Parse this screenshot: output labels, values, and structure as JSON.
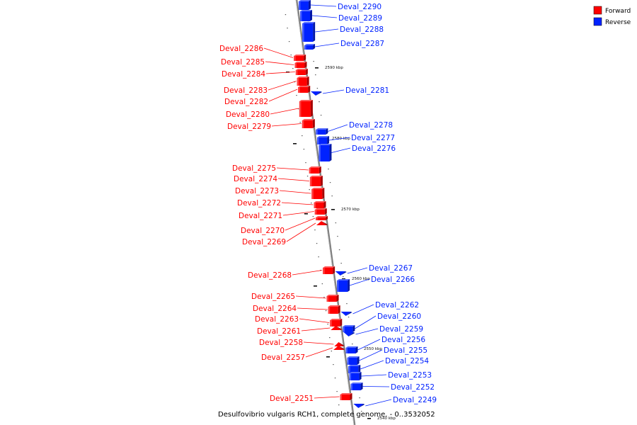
{
  "caption": "Desulfovibrio vulgaris RCH1, complete genome. - 0..3532052",
  "legend": [
    {
      "label": "Forward",
      "color": "#ff0000"
    },
    {
      "label": "Reverse",
      "color": "#0022ff"
    }
  ],
  "colors": {
    "forward": "#ff0000",
    "reverse": "#0022ff",
    "axis": "#777777"
  },
  "ticks": [
    "2590 kbp",
    "2580 kbp",
    "2570 kbp",
    "2560 kbp",
    "2550 kbp",
    "2540 kbp"
  ],
  "genes": [
    {
      "name": "Deval_2290",
      "strand": "reverse"
    },
    {
      "name": "Deval_2289",
      "strand": "reverse"
    },
    {
      "name": "Deval_2288",
      "strand": "reverse"
    },
    {
      "name": "Deval_2287",
      "strand": "reverse"
    },
    {
      "name": "Deval_2286",
      "strand": "forward"
    },
    {
      "name": "Deval_2285",
      "strand": "forward"
    },
    {
      "name": "Deval_2284",
      "strand": "forward"
    },
    {
      "name": "Deval_2283",
      "strand": "forward"
    },
    {
      "name": "Deval_2282",
      "strand": "forward"
    },
    {
      "name": "Deval_2281",
      "strand": "reverse"
    },
    {
      "name": "Deval_2280",
      "strand": "forward"
    },
    {
      "name": "Deval_2279",
      "strand": "forward"
    },
    {
      "name": "Deval_2278",
      "strand": "reverse"
    },
    {
      "name": "Deval_2277",
      "strand": "reverse"
    },
    {
      "name": "Deval_2276",
      "strand": "reverse"
    },
    {
      "name": "Deval_2275",
      "strand": "forward"
    },
    {
      "name": "Deval_2274",
      "strand": "forward"
    },
    {
      "name": "Deval_2273",
      "strand": "forward"
    },
    {
      "name": "Deval_2272",
      "strand": "forward"
    },
    {
      "name": "Deval_2271",
      "strand": "forward"
    },
    {
      "name": "Deval_2270",
      "strand": "forward"
    },
    {
      "name": "Deval_2269",
      "strand": "forward"
    },
    {
      "name": "Deval_2268",
      "strand": "forward"
    },
    {
      "name": "Deval_2267",
      "strand": "reverse"
    },
    {
      "name": "Deval_2266",
      "strand": "reverse"
    },
    {
      "name": "Deval_2265",
      "strand": "forward"
    },
    {
      "name": "Deval_2264",
      "strand": "forward"
    },
    {
      "name": "Deval_2263",
      "strand": "forward"
    },
    {
      "name": "Deval_2262",
      "strand": "reverse"
    },
    {
      "name": "Deval_2261",
      "strand": "forward"
    },
    {
      "name": "Deval_2260",
      "strand": "reverse"
    },
    {
      "name": "Deval_2259",
      "strand": "reverse"
    },
    {
      "name": "Deval_2258",
      "strand": "forward"
    },
    {
      "name": "Deval_2257",
      "strand": "forward"
    },
    {
      "name": "Deval_2256",
      "strand": "reverse"
    },
    {
      "name": "Deval_2255",
      "strand": "reverse"
    },
    {
      "name": "Deval_2254",
      "strand": "reverse"
    },
    {
      "name": "Deval_2253",
      "strand": "reverse"
    },
    {
      "name": "Deval_2252",
      "strand": "reverse"
    },
    {
      "name": "Deval_2251",
      "strand": "forward"
    },
    {
      "name": "Deval_2249",
      "strand": "reverse"
    }
  ]
}
